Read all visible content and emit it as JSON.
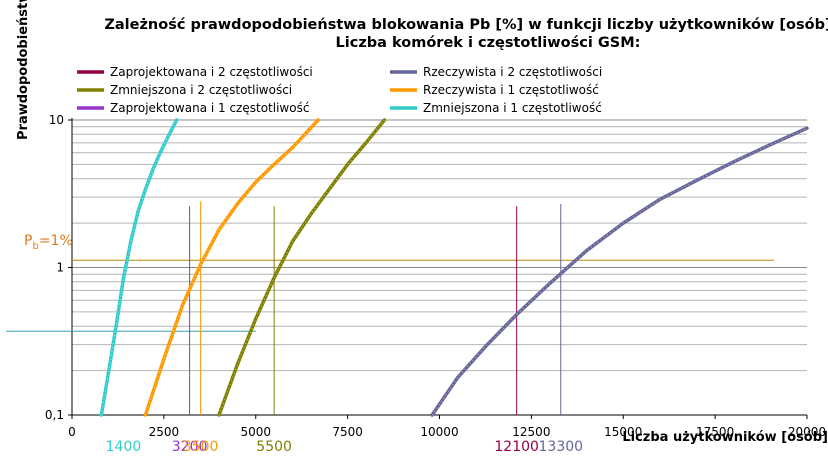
{
  "chart_data": {
    "type": "line",
    "title": "Zależność prawdopodobieństwa blokowania Pb [%] w funkcji liczby użytkowników [osób]",
    "subtitle": "Liczba komórek i częstotliwości GSM:",
    "xlabel": "Liczba użytkowników [osób]",
    "ylabel": "Prawdopodobieństwo",
    "xlim": [
      0,
      20000
    ],
    "ylim": [
      0.1,
      10
    ],
    "y_scale": "log",
    "grid": true,
    "legend_position": "top",
    "x_ticks": [
      "0",
      "2500",
      "5000",
      "7500",
      "10000",
      "12500",
      "15000",
      "17500",
      "20000"
    ],
    "y_ticks": [
      "0,1",
      "1",
      "10"
    ],
    "threshold_label_main": "P",
    "threshold_label_sub": "b",
    "threshold_label_rest": "=1%",
    "threshold_value": 1,
    "series": [
      {
        "name": "Zaprojektowana i 2 częstotliwości",
        "color": "#990044",
        "x": [],
        "y": []
      },
      {
        "name": "Rzeczywista i 2 częstotliwości",
        "color": "#666699",
        "x": [
          9800,
          10500,
          11300,
          12100,
          13000,
          14000,
          15000,
          16000,
          17000,
          18000,
          19000,
          20000
        ],
        "y": [
          0.1,
          0.18,
          0.3,
          0.48,
          0.78,
          1.3,
          2.0,
          2.9,
          3.9,
          5.2,
          6.8,
          8.8
        ]
      },
      {
        "name": "Zmniejszona i 2 częstotliwości",
        "color": "#808000",
        "x": [
          4000,
          4500,
          5000,
          5500,
          6000,
          6500,
          7000,
          7500,
          8000,
          8500
        ],
        "y": [
          0.1,
          0.22,
          0.45,
          0.85,
          1.5,
          2.3,
          3.4,
          5.0,
          7.0,
          10
        ]
      },
      {
        "name": "Rzeczywista i 1 częstotliwość",
        "color": "#ff9900",
        "x": [
          2000,
          2500,
          3000,
          3500,
          4000,
          4500,
          5000,
          5500,
          6000,
          6700
        ],
        "y": [
          0.1,
          0.24,
          0.55,
          1.05,
          1.8,
          2.7,
          3.8,
          5.0,
          6.5,
          10
        ]
      },
      {
        "name": "Zaprojektowana i 1 częstotliwość",
        "color": "#9933cc",
        "x": [],
        "y": []
      },
      {
        "name": "Zmniejszona i 1 częstotliwość",
        "color": "#33cccc",
        "x": [
          800,
          1000,
          1200,
          1400,
          1600,
          1800,
          2000,
          2200,
          2400,
          2600,
          2850
        ],
        "y": [
          0.1,
          0.2,
          0.4,
          0.85,
          1.5,
          2.4,
          3.4,
          4.6,
          6.0,
          7.6,
          10
        ]
      }
    ],
    "markers": [
      {
        "label": "1400",
        "value": 1400,
        "color": "#33cccc"
      },
      {
        "label": "3200",
        "value": 3200,
        "color": "#9933cc"
      },
      {
        "label": "3500",
        "value": 3500,
        "color": "#ff9900"
      },
      {
        "label": "5500",
        "value": 5500,
        "color": "#808000"
      },
      {
        "label": "12100",
        "value": 12100,
        "color": "#990044"
      },
      {
        "label": "13300",
        "value": 13300,
        "color": "#666699"
      }
    ]
  }
}
